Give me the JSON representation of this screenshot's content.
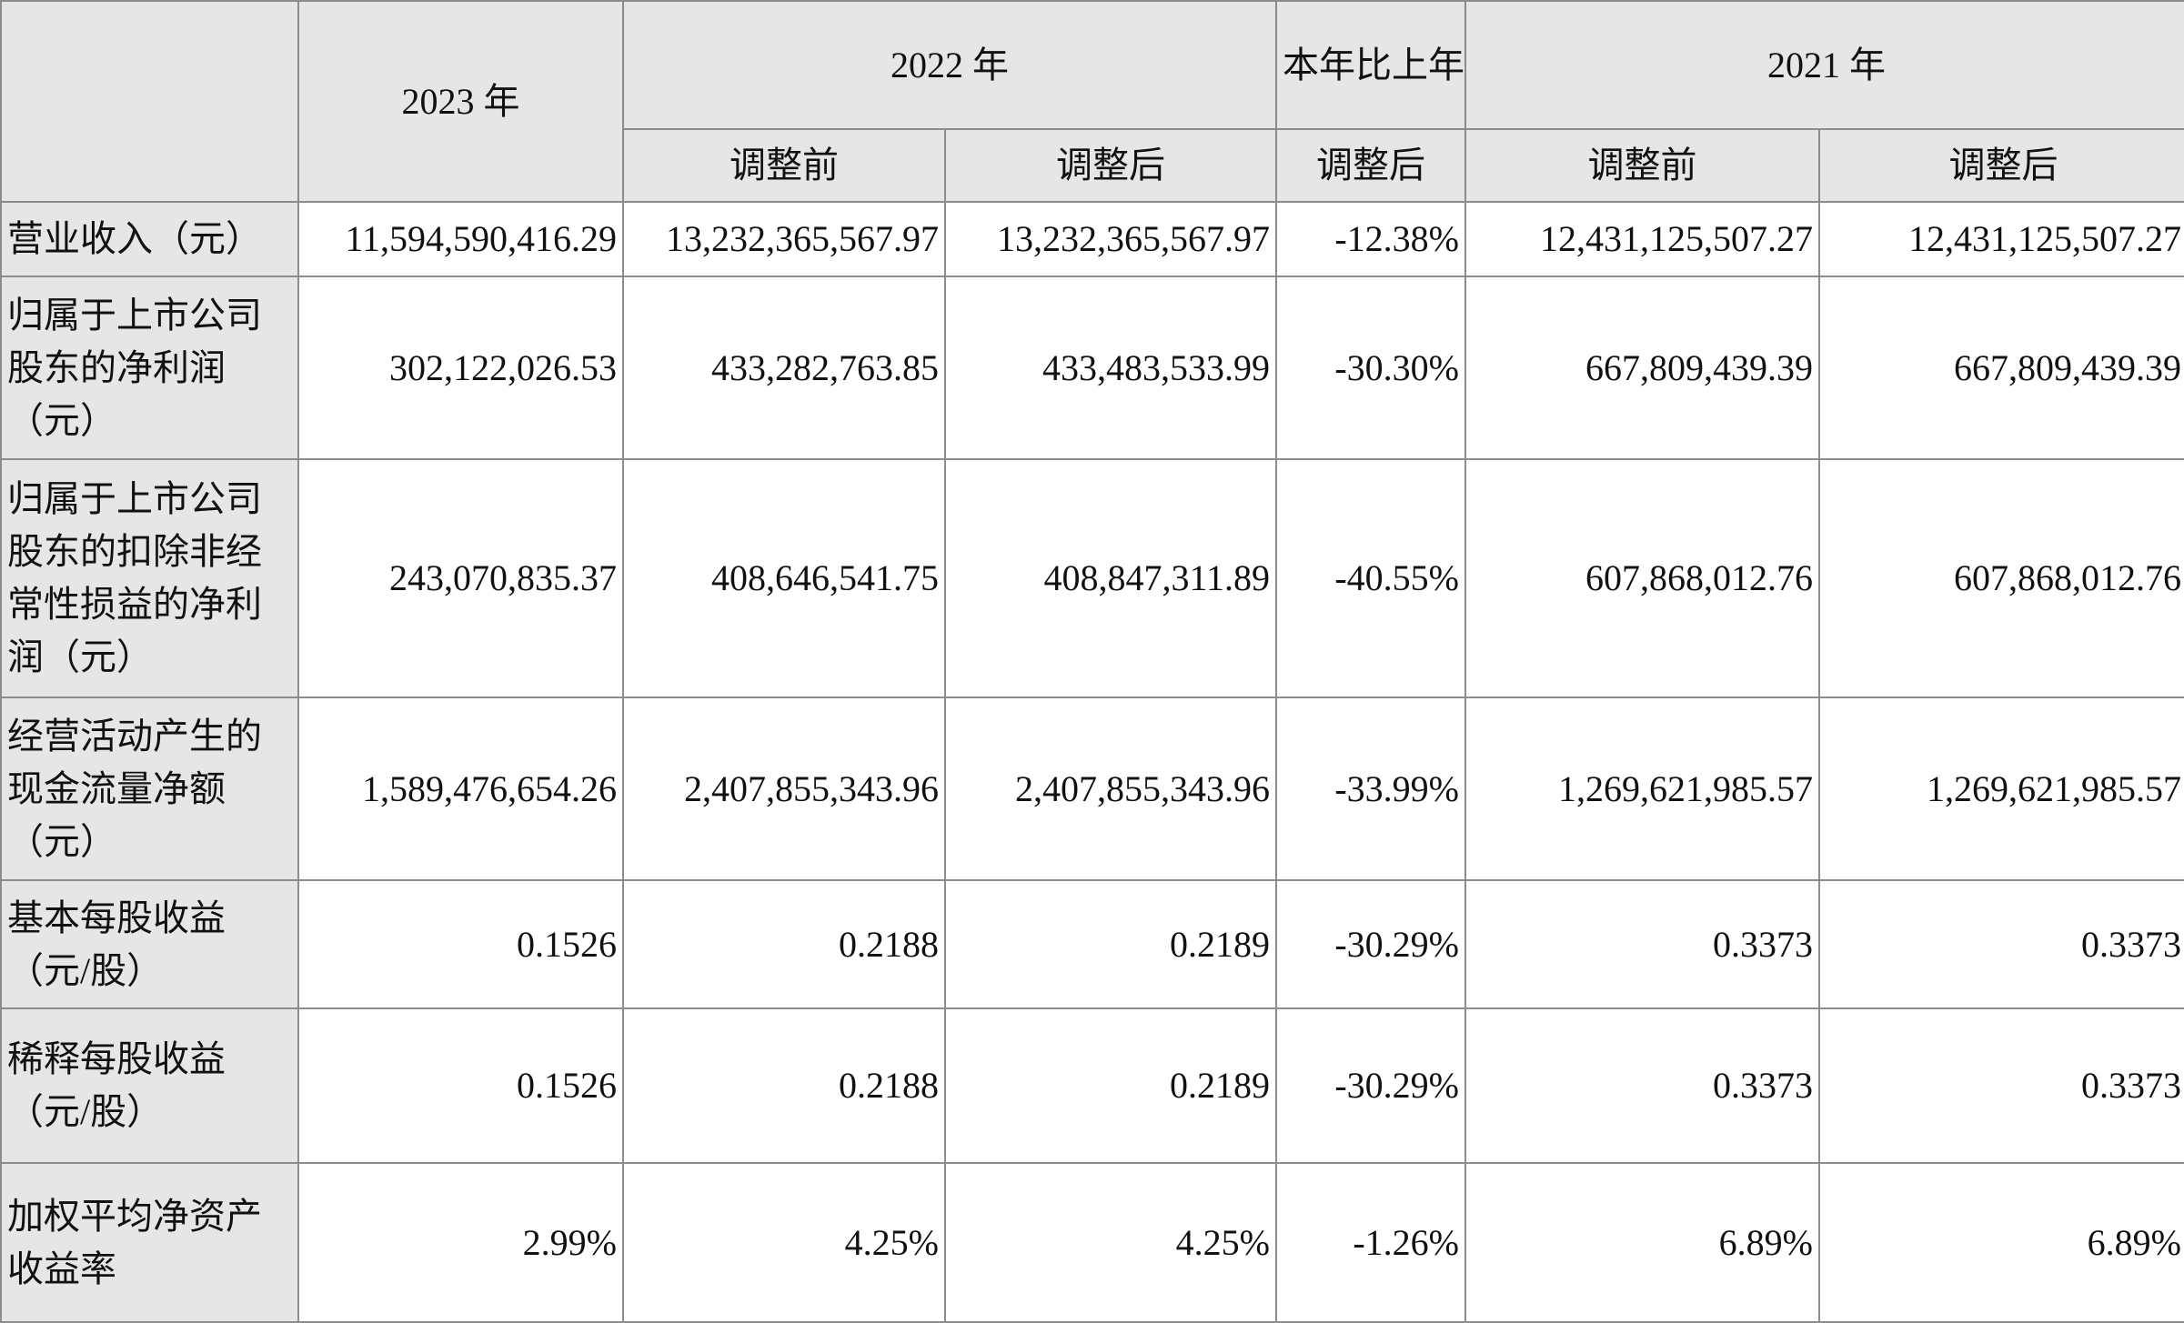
{
  "table": {
    "header": {
      "y2023": "2023 年",
      "y2022": "2022 年",
      "change": "本年比上年增减",
      "y2021": "2021 年",
      "sub_before_2022": "调整前",
      "sub_after_2022": "调整后",
      "sub_change": "调整后",
      "sub_before_2021": "调整前",
      "sub_after_2021": "调整后"
    },
    "rows": [
      {
        "label": "营业收入（元）",
        "v2023": "11,594,590,416.29",
        "v2022_before": "13,232,365,567.97",
        "v2022_after": "13,232,365,567.97",
        "change": "-12.38%",
        "v2021_before": "12,431,125,507.27",
        "v2021_after": "12,431,125,507.27"
      },
      {
        "label": "归属于上市公司股东的净利润（元）",
        "v2023": "302,122,026.53",
        "v2022_before": "433,282,763.85",
        "v2022_after": "433,483,533.99",
        "change": "-30.30%",
        "v2021_before": "667,809,439.39",
        "v2021_after": "667,809,439.39"
      },
      {
        "label": "归属于上市公司股东的扣除非经常性损益的净利润（元）",
        "v2023": "243,070,835.37",
        "v2022_before": "408,646,541.75",
        "v2022_after": "408,847,311.89",
        "change": "-40.55%",
        "v2021_before": "607,868,012.76",
        "v2021_after": "607,868,012.76"
      },
      {
        "label": "经营活动产生的现金流量净额（元）",
        "v2023": "1,589,476,654.26",
        "v2022_before": "2,407,855,343.96",
        "v2022_after": "2,407,855,343.96",
        "change": "-33.99%",
        "v2021_before": "1,269,621,985.57",
        "v2021_after": "1,269,621,985.57"
      },
      {
        "label": "基本每股收益（元/股）",
        "v2023": "0.1526",
        "v2022_before": "0.2188",
        "v2022_after": "0.2189",
        "change": "-30.29%",
        "v2021_before": "0.3373",
        "v2021_after": "0.3373"
      },
      {
        "label": "稀释每股收益（元/股）",
        "v2023": "0.1526",
        "v2022_before": "0.2188",
        "v2022_after": "0.2189",
        "change": "-30.29%",
        "v2021_before": "0.3373",
        "v2021_after": "0.3373"
      },
      {
        "label": "加权平均净资产收益率",
        "v2023": "2.99%",
        "v2022_before": "4.25%",
        "v2022_after": "4.25%",
        "change": "-1.26%",
        "v2021_before": "6.89%",
        "v2021_after": "6.89%"
      }
    ]
  }
}
